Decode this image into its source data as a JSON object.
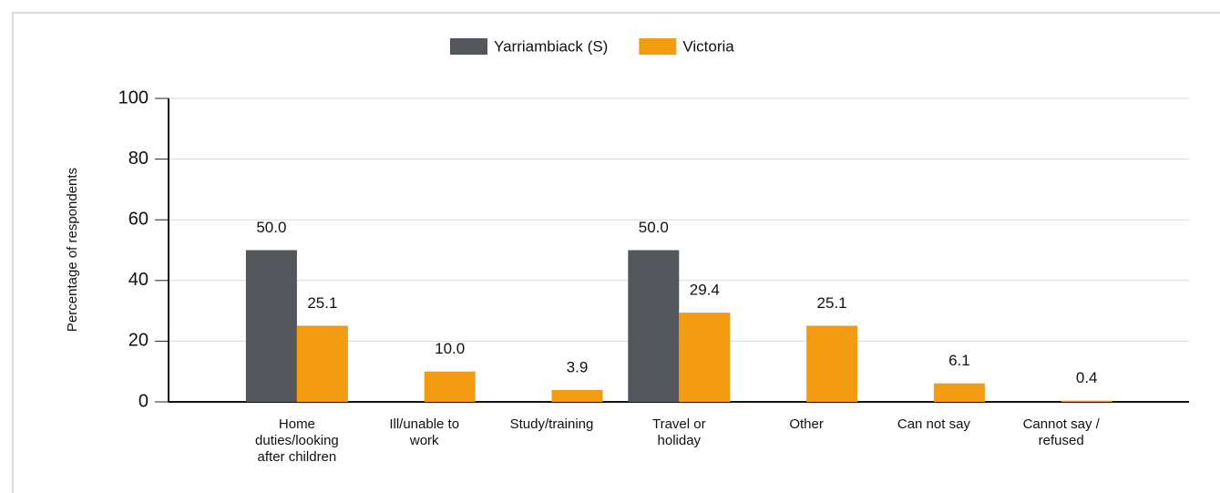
{
  "chart_data": {
    "type": "bar",
    "y_label": "Percentage of respondents",
    "categories": [
      "Home duties/looking after children",
      "Ill/unable to work",
      "Study/training",
      "Travel or holiday",
      "Other",
      "Can not say",
      "Cannot say / refused"
    ],
    "series": [
      {
        "name": "Yarriambiack (S)",
        "color": "#53565a",
        "values": [
          50,
          null,
          null,
          50,
          null,
          null,
          null
        ],
        "value_labels": [
          "50.0",
          null,
          null,
          "50.0",
          null,
          null,
          null
        ]
      },
      {
        "name": "Victoria",
        "color": "#f39c12",
        "values": [
          25.1,
          10,
          3.9,
          29.4,
          25.1,
          6.1,
          0.4
        ],
        "value_labels": [
          "25.1",
          "10.0",
          "3.9",
          "29.4",
          "25.1",
          "6.1",
          "0.4"
        ]
      }
    ],
    "ylim": [
      0,
      100
    ],
    "yticks": [
      0,
      20,
      40,
      60,
      80,
      100
    ],
    "grid": true,
    "legend": "top"
  }
}
